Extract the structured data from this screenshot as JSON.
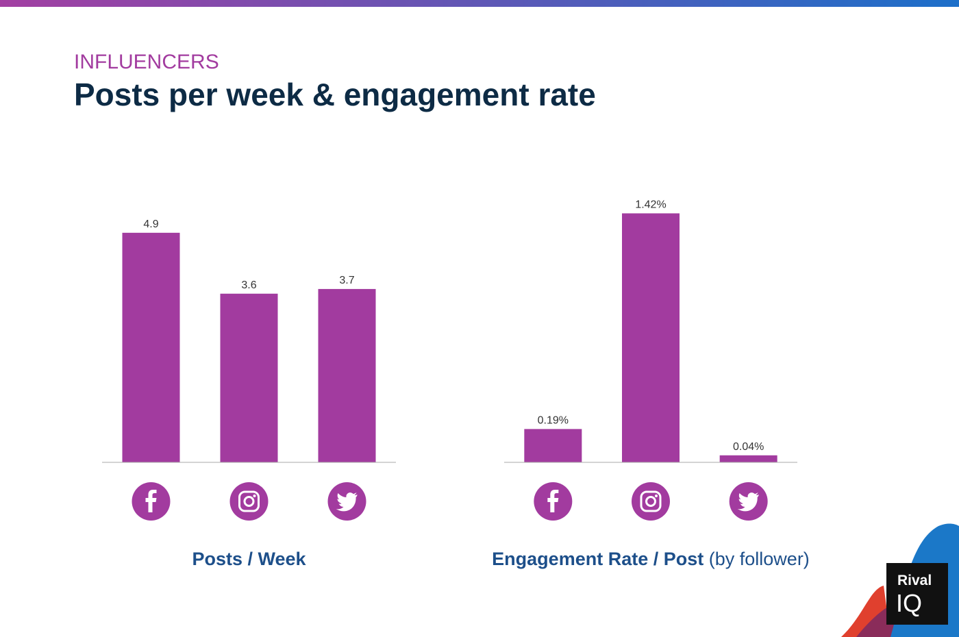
{
  "header": {
    "eyebrow": "INFLUENCERS",
    "title": "Posts per week & engagement rate"
  },
  "logo": [
    "Rival",
    "IQ"
  ],
  "chart_data": [
    {
      "type": "bar",
      "title": "Posts / Week",
      "categories": [
        null,
        null,
        null
      ],
      "values": [
        4.9,
        3.6,
        3.7
      ],
      "color": "#a23b9f",
      "ylim": [
        0,
        5
      ]
    },
    {
      "type": "bar",
      "title": "Engagement Rate / Post",
      "subtitle": "(by follower)",
      "categories": [
        null,
        null,
        null
      ],
      "values": [
        0.19,
        1.42,
        0.04
      ],
      "value_labels": [
        "0.19%",
        "1.42%",
        "0.04%"
      ],
      "color": "#a23b9f",
      "ylim": [
        0,
        1.5
      ]
    }
  ]
}
